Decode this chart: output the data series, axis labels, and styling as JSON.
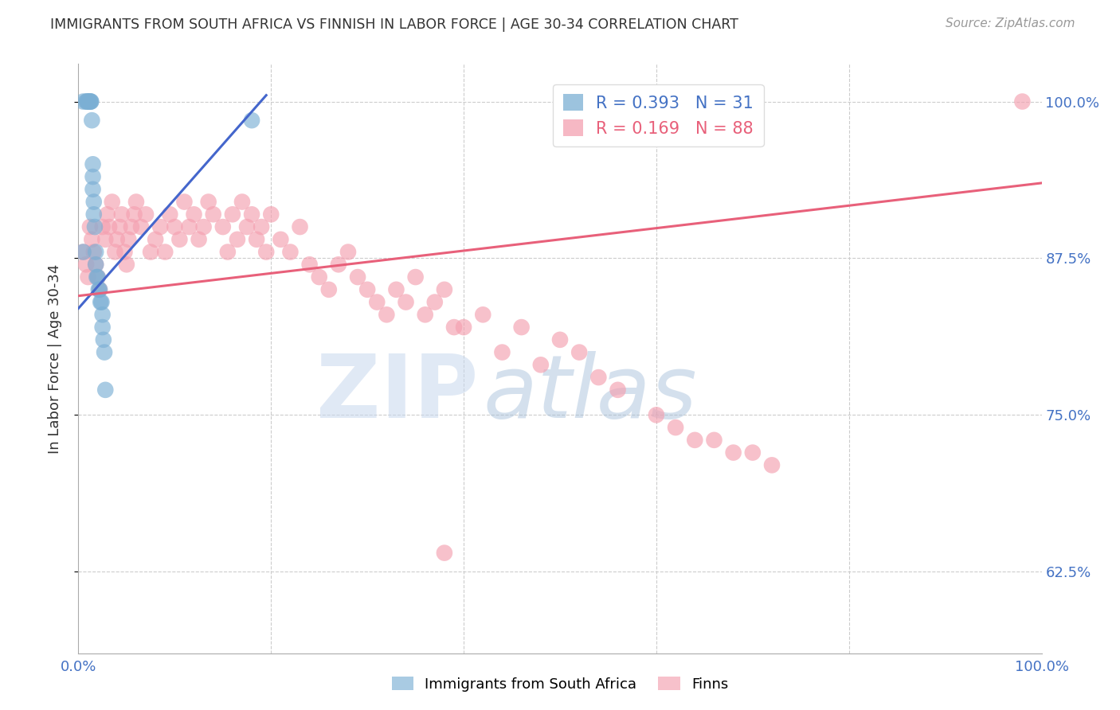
{
  "title": "IMMIGRANTS FROM SOUTH AFRICA VS FINNISH IN LABOR FORCE | AGE 30-34 CORRELATION CHART",
  "source": "Source: ZipAtlas.com",
  "ylabel": "In Labor Force | Age 30-34",
  "xlim": [
    0.0,
    1.0
  ],
  "ylim": [
    0.56,
    1.03
  ],
  "yticks": [
    0.625,
    0.75,
    0.875,
    1.0
  ],
  "ytick_labels": [
    "62.5%",
    "75.0%",
    "87.5%",
    "100.0%"
  ],
  "grid_color": "#cccccc",
  "blue_color": "#7bafd4",
  "pink_color": "#f4a0b0",
  "blue_line_color": "#4466cc",
  "pink_line_color": "#e8607a",
  "legend_R_blue": "0.393",
  "legend_N_blue": "31",
  "legend_R_pink": "0.169",
  "legend_N_pink": "88",
  "blue_x": [
    0.005,
    0.008,
    0.009,
    0.01,
    0.01,
    0.012,
    0.012,
    0.013,
    0.013,
    0.014,
    0.015,
    0.015,
    0.015,
    0.016,
    0.016,
    0.017,
    0.018,
    0.018,
    0.019,
    0.02,
    0.021,
    0.022,
    0.023,
    0.024,
    0.025,
    0.025,
    0.026,
    0.027,
    0.028,
    0.18,
    0.005
  ],
  "blue_y": [
    1.0,
    1.0,
    1.0,
    1.0,
    1.0,
    1.0,
    1.0,
    1.0,
    1.0,
    0.985,
    0.95,
    0.94,
    0.93,
    0.92,
    0.91,
    0.9,
    0.88,
    0.87,
    0.86,
    0.86,
    0.85,
    0.85,
    0.84,
    0.84,
    0.83,
    0.82,
    0.81,
    0.8,
    0.77,
    0.985,
    0.88
  ],
  "pink_x": [
    0.005,
    0.008,
    0.01,
    0.012,
    0.014,
    0.016,
    0.018,
    0.02,
    0.022,
    0.025,
    0.028,
    0.03,
    0.032,
    0.035,
    0.038,
    0.04,
    0.043,
    0.045,
    0.048,
    0.05,
    0.052,
    0.055,
    0.058,
    0.06,
    0.065,
    0.07,
    0.075,
    0.08,
    0.085,
    0.09,
    0.095,
    0.1,
    0.105,
    0.11,
    0.115,
    0.12,
    0.125,
    0.13,
    0.135,
    0.14,
    0.15,
    0.155,
    0.16,
    0.165,
    0.17,
    0.175,
    0.18,
    0.185,
    0.19,
    0.195,
    0.2,
    0.21,
    0.22,
    0.23,
    0.24,
    0.25,
    0.26,
    0.27,
    0.28,
    0.29,
    0.3,
    0.31,
    0.32,
    0.33,
    0.34,
    0.35,
    0.36,
    0.37,
    0.38,
    0.39,
    0.4,
    0.42,
    0.44,
    0.46,
    0.48,
    0.5,
    0.52,
    0.54,
    0.56,
    0.6,
    0.62,
    0.64,
    0.66,
    0.68,
    0.7,
    0.72,
    0.98,
    0.38
  ],
  "pink_y": [
    0.88,
    0.87,
    0.86,
    0.9,
    0.89,
    0.88,
    0.87,
    0.86,
    0.85,
    0.9,
    0.89,
    0.91,
    0.9,
    0.92,
    0.88,
    0.89,
    0.9,
    0.91,
    0.88,
    0.87,
    0.89,
    0.9,
    0.91,
    0.92,
    0.9,
    0.91,
    0.88,
    0.89,
    0.9,
    0.88,
    0.91,
    0.9,
    0.89,
    0.92,
    0.9,
    0.91,
    0.89,
    0.9,
    0.92,
    0.91,
    0.9,
    0.88,
    0.91,
    0.89,
    0.92,
    0.9,
    0.91,
    0.89,
    0.9,
    0.88,
    0.91,
    0.89,
    0.88,
    0.9,
    0.87,
    0.86,
    0.85,
    0.87,
    0.88,
    0.86,
    0.85,
    0.84,
    0.83,
    0.85,
    0.84,
    0.86,
    0.83,
    0.84,
    0.85,
    0.82,
    0.82,
    0.83,
    0.8,
    0.82,
    0.79,
    0.81,
    0.8,
    0.78,
    0.77,
    0.75,
    0.74,
    0.73,
    0.73,
    0.72,
    0.72,
    0.71,
    1.0,
    0.64
  ],
  "blue_trend_x": [
    0.0,
    0.195
  ],
  "blue_trend_y": [
    0.835,
    1.005
  ],
  "pink_trend_x": [
    0.0,
    1.0
  ],
  "pink_trend_y": [
    0.845,
    0.935
  ],
  "watermark_zip": "ZIP",
  "watermark_atlas": "atlas",
  "bg_color": "#ffffff"
}
